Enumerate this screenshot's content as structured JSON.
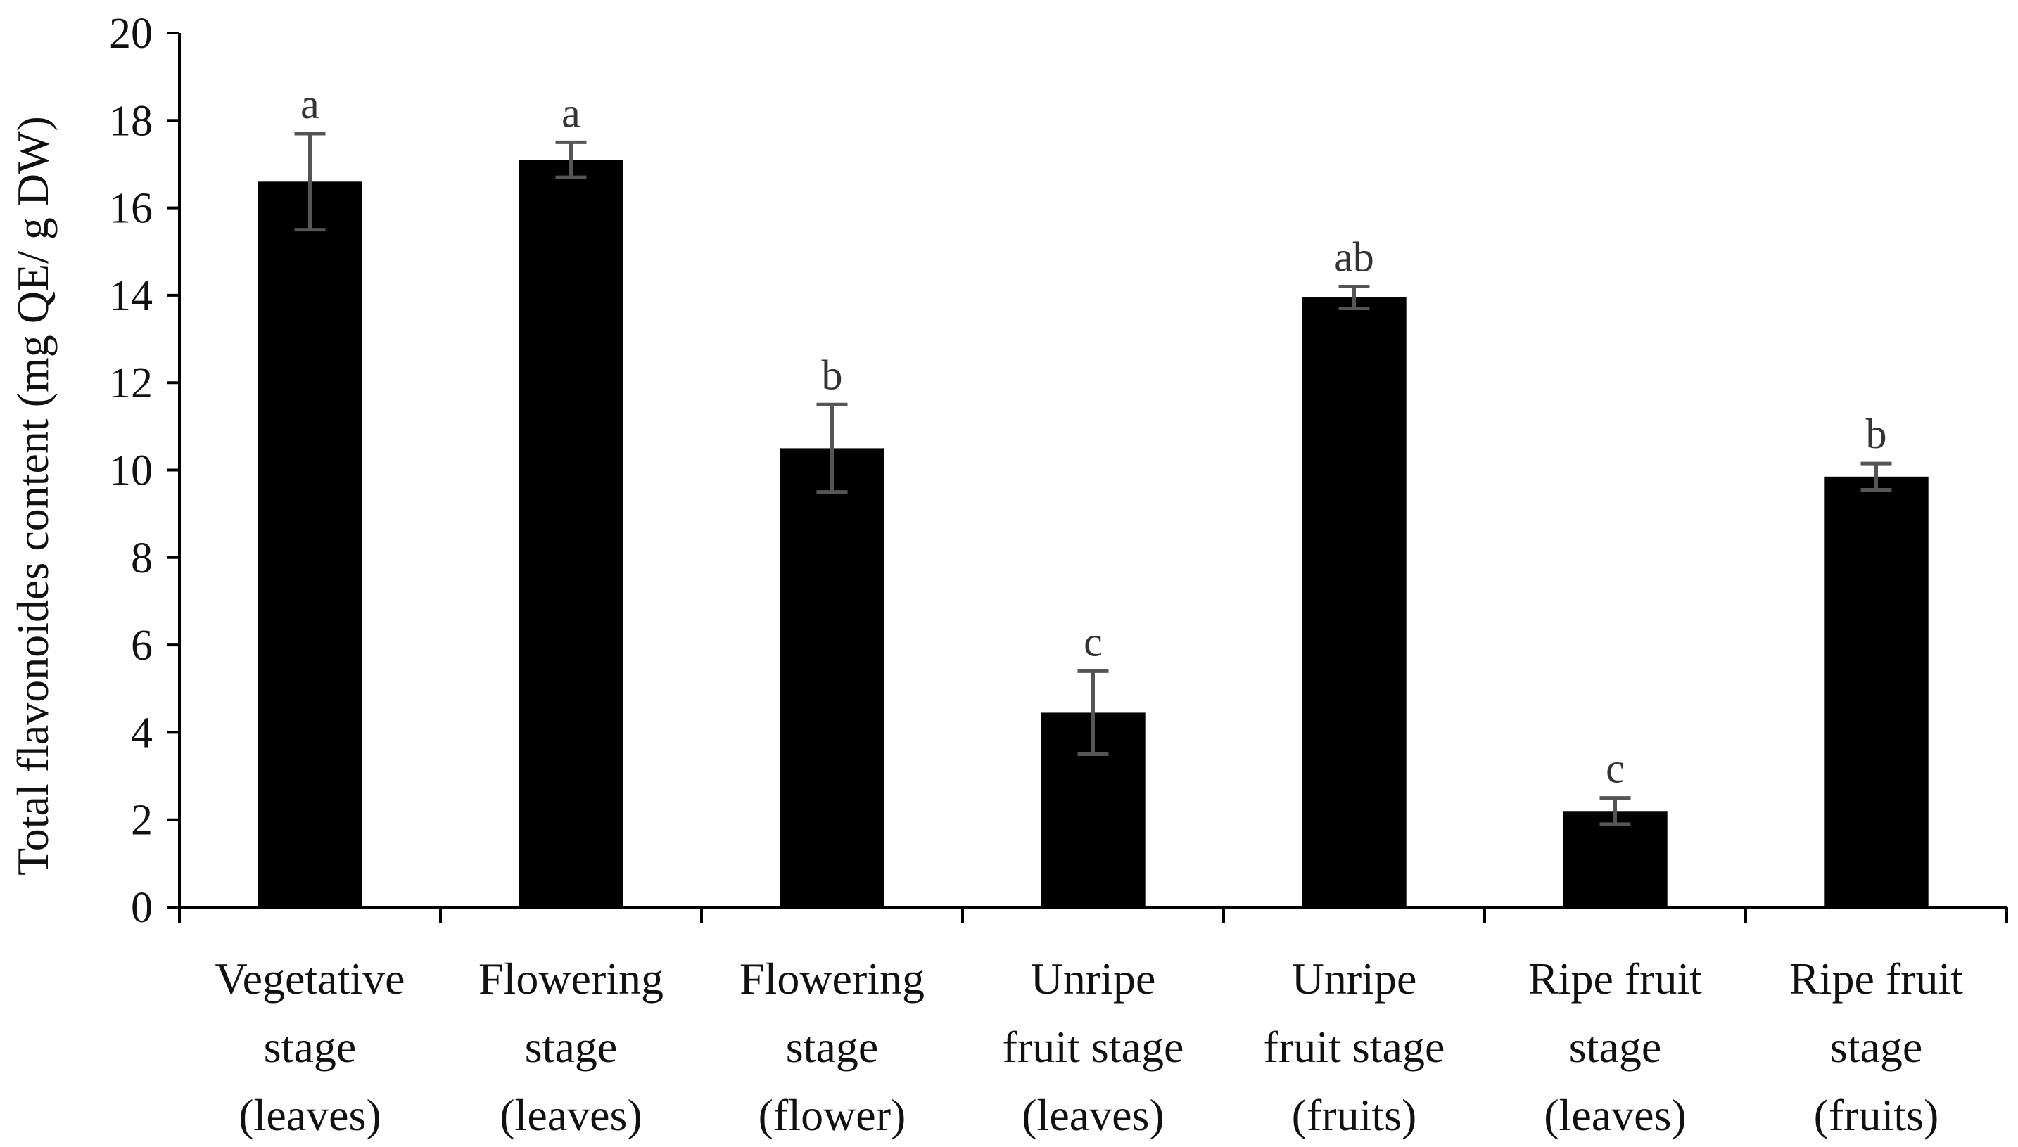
{
  "chart_data": {
    "type": "bar",
    "ylabel": "Total flavonoides content (mg QE/ g DW)",
    "xlabel": "",
    "ylim": [
      0,
      20
    ],
    "yticks": [
      0,
      2,
      4,
      6,
      8,
      10,
      12,
      14,
      16,
      18,
      20
    ],
    "grid": false,
    "legend": "none",
    "categories": [
      [
        "Vegetative",
        "stage",
        "(leaves)"
      ],
      [
        "Flowering",
        "stage",
        "(leaves)"
      ],
      [
        "Flowering",
        "stage",
        "(flower)"
      ],
      [
        "Unripe",
        "fruit stage",
        "(leaves)"
      ],
      [
        "Unripe",
        "fruit stage",
        "(fruits)"
      ],
      [
        "Ripe fruit",
        "stage",
        "(leaves)"
      ],
      [
        "Ripe fruit",
        "stage",
        "(fruits)"
      ]
    ],
    "values": [
      16.6,
      17.1,
      10.5,
      4.45,
      13.95,
      2.2,
      9.85
    ],
    "errors": [
      1.1,
      0.4,
      1.0,
      0.95,
      0.25,
      0.3,
      0.3
    ],
    "significance": [
      "a",
      "a",
      "b",
      "c",
      "ab",
      "c",
      "b"
    ],
    "colors": {
      "bar": "#000000",
      "error_bar": "#555555",
      "axis": "#000000"
    }
  }
}
